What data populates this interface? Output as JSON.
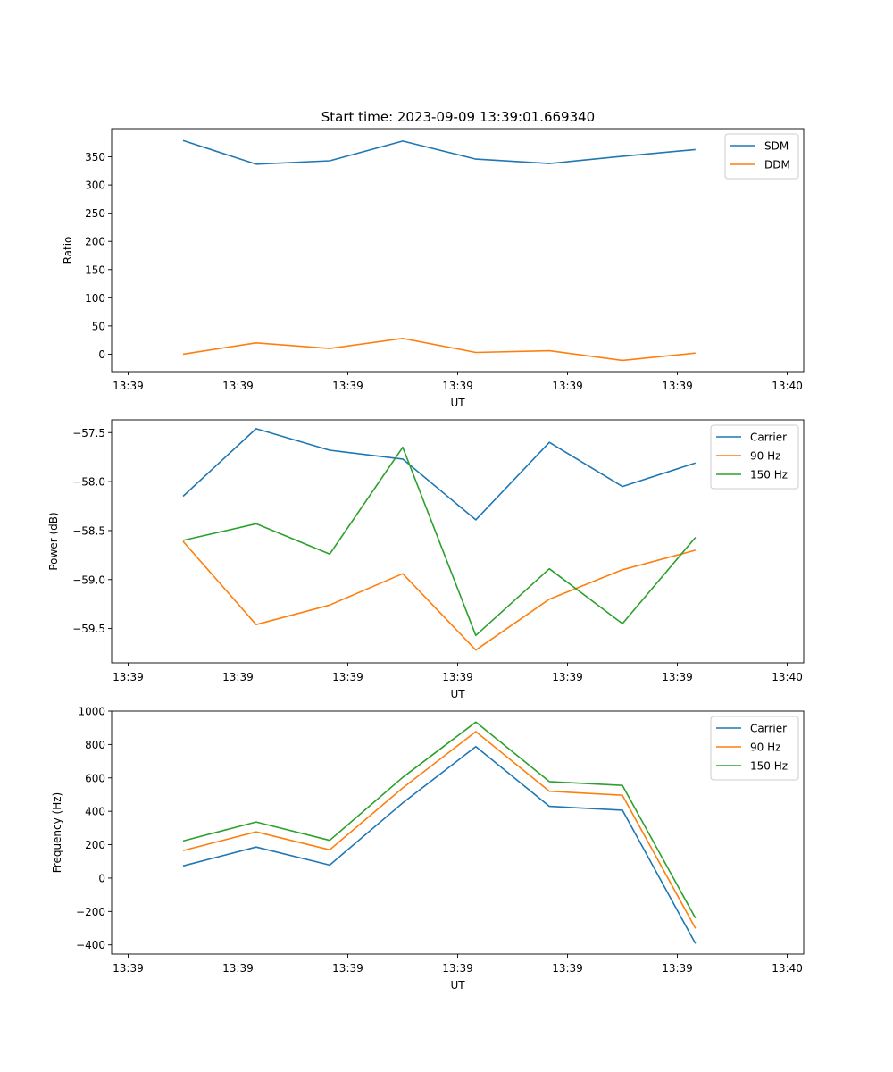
{
  "figure": {
    "title": "Start time: 2023-09-09 13:39:01.669340"
  },
  "chart_data": [
    {
      "type": "line",
      "title": "Start time: 2023-09-09 13:39:01.669340",
      "xlabel": "UT",
      "ylabel": "Ratio",
      "x_tick_labels": [
        "13:39",
        "13:39",
        "13:39",
        "13:39",
        "13:39",
        "13:39",
        "13:40"
      ],
      "xlim": [
        -0.3,
        12.3
      ],
      "x": [
        1.0,
        2.33,
        3.67,
        5.0,
        6.33,
        7.67,
        9.0,
        10.33
      ],
      "ylim": [
        -31,
        400
      ],
      "y_ticks": [
        0,
        50,
        100,
        150,
        200,
        250,
        300,
        350
      ],
      "legend_position": "top-right",
      "series": [
        {
          "name": "SDM",
          "color": "#1f77b4",
          "values": [
            379,
            337,
            343,
            378,
            346,
            338,
            351,
            363
          ]
        },
        {
          "name": "DDM",
          "color": "#ff7f0e",
          "values": [
            0,
            20,
            10,
            28,
            3,
            6,
            -11,
            2
          ]
        }
      ]
    },
    {
      "type": "line",
      "title": "",
      "xlabel": "UT",
      "ylabel": "Power (dB)",
      "x_tick_labels": [
        "13:39",
        "13:39",
        "13:39",
        "13:39",
        "13:39",
        "13:39",
        "13:40"
      ],
      "xlim": [
        -0.3,
        12.3
      ],
      "x": [
        1.0,
        2.33,
        3.67,
        5.0,
        6.33,
        7.67,
        9.0,
        10.33
      ],
      "ylim": [
        -59.85,
        -57.37
      ],
      "y_ticks": [
        -59.5,
        -59.0,
        -58.5,
        -58.0,
        -57.5
      ],
      "y_tick_labels": [
        "−59.5",
        "−59.0",
        "−58.5",
        "−58.0",
        "−57.5"
      ],
      "legend_position": "top-right",
      "series": [
        {
          "name": "Carrier",
          "color": "#1f77b4",
          "values": [
            -58.15,
            -57.46,
            -57.68,
            -57.77,
            -58.39,
            -57.6,
            -58.05,
            -57.81
          ]
        },
        {
          "name": "90 Hz",
          "color": "#ff7f0e",
          "values": [
            -58.61,
            -59.46,
            -59.26,
            -58.94,
            -59.72,
            -59.2,
            -58.9,
            -58.7
          ]
        },
        {
          "name": "150 Hz",
          "color": "#2ca02c",
          "values": [
            -58.6,
            -58.43,
            -58.74,
            -57.65,
            -59.57,
            -58.89,
            -59.45,
            -58.57
          ]
        }
      ]
    },
    {
      "type": "line",
      "title": "",
      "xlabel": "UT",
      "ylabel": "Frequency (Hz)",
      "x_tick_labels": [
        "13:39",
        "13:39",
        "13:39",
        "13:39",
        "13:39",
        "13:39",
        "13:40"
      ],
      "xlim": [
        -0.3,
        12.3
      ],
      "x": [
        1.0,
        2.33,
        3.67,
        5.0,
        6.33,
        7.67,
        9.0,
        10.33
      ],
      "ylim": [
        -455,
        1000
      ],
      "y_ticks": [
        -400,
        -200,
        0,
        200,
        400,
        600,
        800,
        1000
      ],
      "y_tick_labels": [
        "−400",
        "−200",
        "0",
        "200",
        "400",
        "600",
        "800",
        "1000"
      ],
      "legend_position": "top-right",
      "series": [
        {
          "name": "Carrier",
          "color": "#1f77b4",
          "values": [
            73,
            186,
            78,
            450,
            787,
            430,
            407,
            -392
          ]
        },
        {
          "name": "90 Hz",
          "color": "#ff7f0e",
          "values": [
            165,
            277,
            169,
            540,
            877,
            520,
            496,
            -301
          ]
        },
        {
          "name": "150 Hz",
          "color": "#2ca02c",
          "values": [
            222,
            336,
            226,
            603,
            934,
            578,
            555,
            -240
          ]
        }
      ]
    }
  ]
}
